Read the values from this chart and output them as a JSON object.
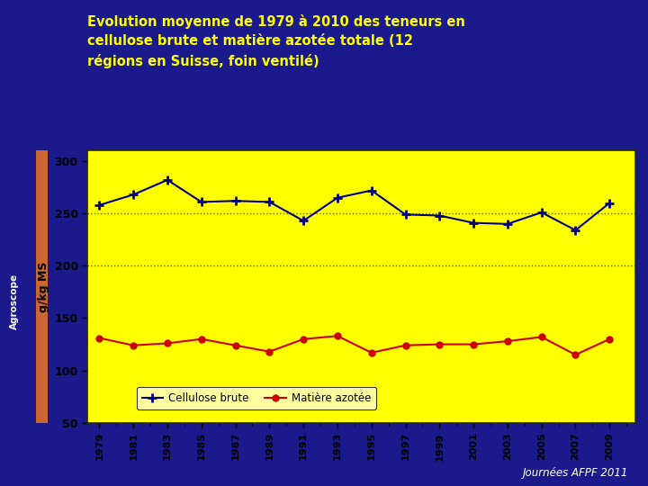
{
  "title": "Evolution moyenne de 1979 à 2010 des teneurs en\ncellulose brute et matière azotée totale (12\nrégions en Suisse, foin ventilé)",
  "ylabel": "g/kg MS",
  "years": [
    1979,
    1981,
    1983,
    1985,
    1987,
    1989,
    1991,
    1993,
    1995,
    1997,
    1999,
    2001,
    2003,
    2005,
    2007,
    2009
  ],
  "cellulose": [
    258,
    268,
    282,
    261,
    262,
    261,
    243,
    265,
    272,
    249,
    248,
    241,
    240,
    251,
    234,
    260
  ],
  "matiere": [
    131,
    124,
    126,
    130,
    124,
    118,
    130,
    133,
    117,
    124,
    125,
    125,
    128,
    132,
    115,
    130
  ],
  "cellulose_color": "#000080",
  "matiere_color": "#cc0000",
  "bg_outer": "#1a1a8c",
  "bg_chart": "#ffff00",
  "title_color": "#ffff00",
  "ylim": [
    50,
    310
  ],
  "yticks": [
    50,
    100,
    150,
    200,
    250,
    300
  ],
  "grid_values": [
    200,
    250
  ],
  "legend_cellulose": "Cellulose brute",
  "legend_matiere": "Matière azotée",
  "footer": "Journées AFPF 2011",
  "agroscope_label": "Agroscope",
  "left_bar_color": "#cc6633"
}
